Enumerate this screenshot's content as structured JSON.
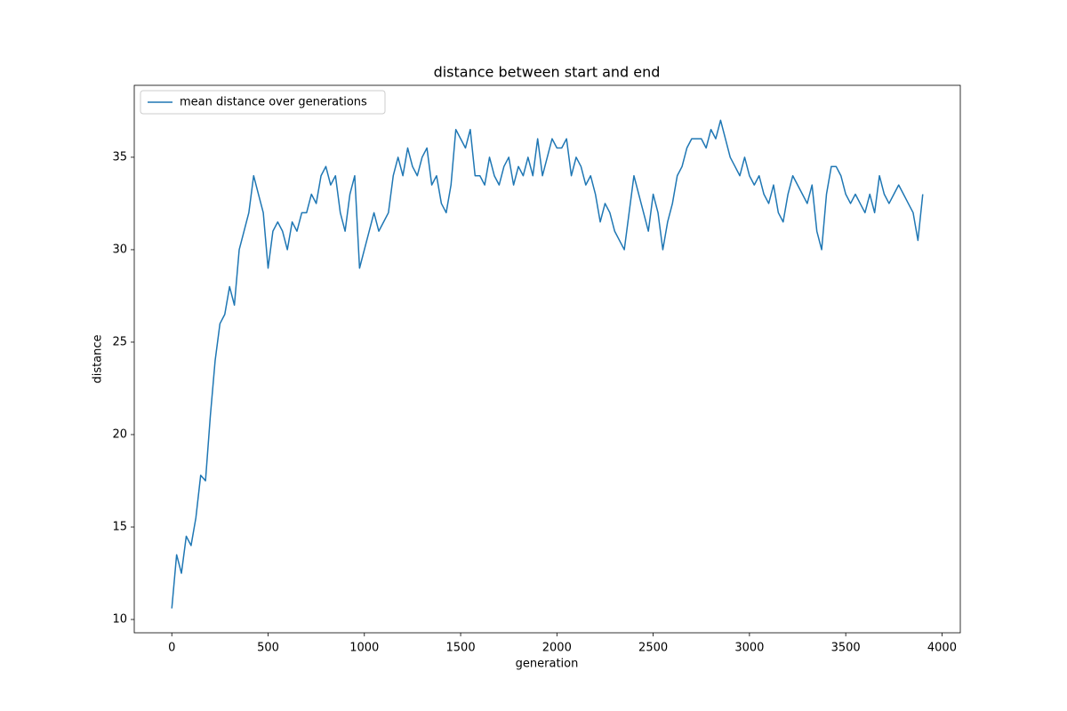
{
  "chart_data": {
    "type": "line",
    "title": "distance between start and end",
    "xlabel": "generation",
    "ylabel": "distance",
    "x": [
      0,
      25,
      50,
      75,
      100,
      125,
      150,
      175,
      200,
      225,
      250,
      275,
      300,
      325,
      350,
      375,
      400,
      425,
      450,
      475,
      500,
      525,
      550,
      575,
      600,
      625,
      650,
      675,
      700,
      725,
      750,
      775,
      800,
      825,
      850,
      875,
      900,
      925,
      950,
      975,
      1000,
      1025,
      1050,
      1075,
      1100,
      1125,
      1150,
      1175,
      1200,
      1225,
      1250,
      1275,
      1300,
      1325,
      1350,
      1375,
      1400,
      1425,
      1450,
      1475,
      1500,
      1525,
      1550,
      1575,
      1600,
      1625,
      1650,
      1675,
      1700,
      1725,
      1750,
      1775,
      1800,
      1825,
      1850,
      1875,
      1900,
      1925,
      1950,
      1975,
      2000,
      2025,
      2050,
      2075,
      2100,
      2125,
      2150,
      2175,
      2200,
      2225,
      2250,
      2275,
      2300,
      2325,
      2350,
      2375,
      2400,
      2425,
      2450,
      2475,
      2500,
      2525,
      2550,
      2575,
      2600,
      2625,
      2650,
      2675,
      2700,
      2725,
      2750,
      2775,
      2800,
      2825,
      2850,
      2875,
      2900,
      2925,
      2950,
      2975,
      3000,
      3025,
      3050,
      3075,
      3100,
      3125,
      3150,
      3175,
      3200,
      3225,
      3250,
      3275,
      3300,
      3325,
      3350,
      3375,
      3400,
      3425,
      3450,
      3475,
      3500,
      3525,
      3550,
      3575,
      3600,
      3625,
      3650,
      3675,
      3700,
      3725,
      3750,
      3775,
      3800,
      3825,
      3850,
      3875,
      3900
    ],
    "series": [
      {
        "name": "mean distance over generations",
        "color": "#1f77b4",
        "values": [
          10.6,
          13.5,
          12.5,
          14.5,
          14,
          15.5,
          17.8,
          17.5,
          21,
          24,
          26,
          26.5,
          28,
          27,
          30,
          31,
          32,
          34,
          33,
          32,
          29,
          31,
          31.5,
          31,
          30,
          31.5,
          31,
          32,
          32,
          33,
          32.5,
          34,
          34.5,
          33.5,
          34,
          32,
          31,
          33,
          34,
          29,
          30,
          31,
          32,
          31,
          31.5,
          32,
          34,
          35,
          34,
          35.5,
          34.5,
          34,
          35,
          35.5,
          33.5,
          34,
          32.5,
          32,
          33.5,
          36.5,
          36,
          35.5,
          36.5,
          34,
          34,
          33.5,
          35,
          34,
          33.5,
          34.5,
          35,
          33.5,
          34.5,
          34,
          35,
          34,
          36,
          34,
          35,
          36,
          35.5,
          35.5,
          36,
          34,
          35,
          34.5,
          33.5,
          34,
          33,
          31.5,
          32.5,
          32,
          31,
          30.5,
          30,
          32,
          34,
          33,
          32,
          31,
          33,
          32,
          30,
          31.5,
          32.5,
          34,
          34.5,
          35.5,
          36,
          36,
          36,
          35.5,
          36.5,
          36,
          37,
          36,
          35,
          34.5,
          34,
          35,
          34,
          33.5,
          34,
          33,
          32.5,
          33.5,
          32,
          31.5,
          33,
          34,
          33.5,
          33,
          32.5,
          33.5,
          31,
          30,
          33,
          34.5,
          34.5,
          34,
          33,
          32.5,
          33,
          32.5,
          32,
          33,
          32,
          34,
          33,
          32.5,
          33,
          33.5,
          33,
          32.5,
          32,
          30.5,
          33
        ]
      }
    ],
    "xlim": [
      -195,
      4095
    ],
    "ylim": [
      9.28,
      38.89
    ],
    "xticks": [
      0,
      500,
      1000,
      1500,
      2000,
      2500,
      3000,
      3500,
      4000
    ],
    "yticks": [
      10,
      15,
      20,
      25,
      30,
      35
    ],
    "grid": false,
    "legend": "upper-left"
  }
}
